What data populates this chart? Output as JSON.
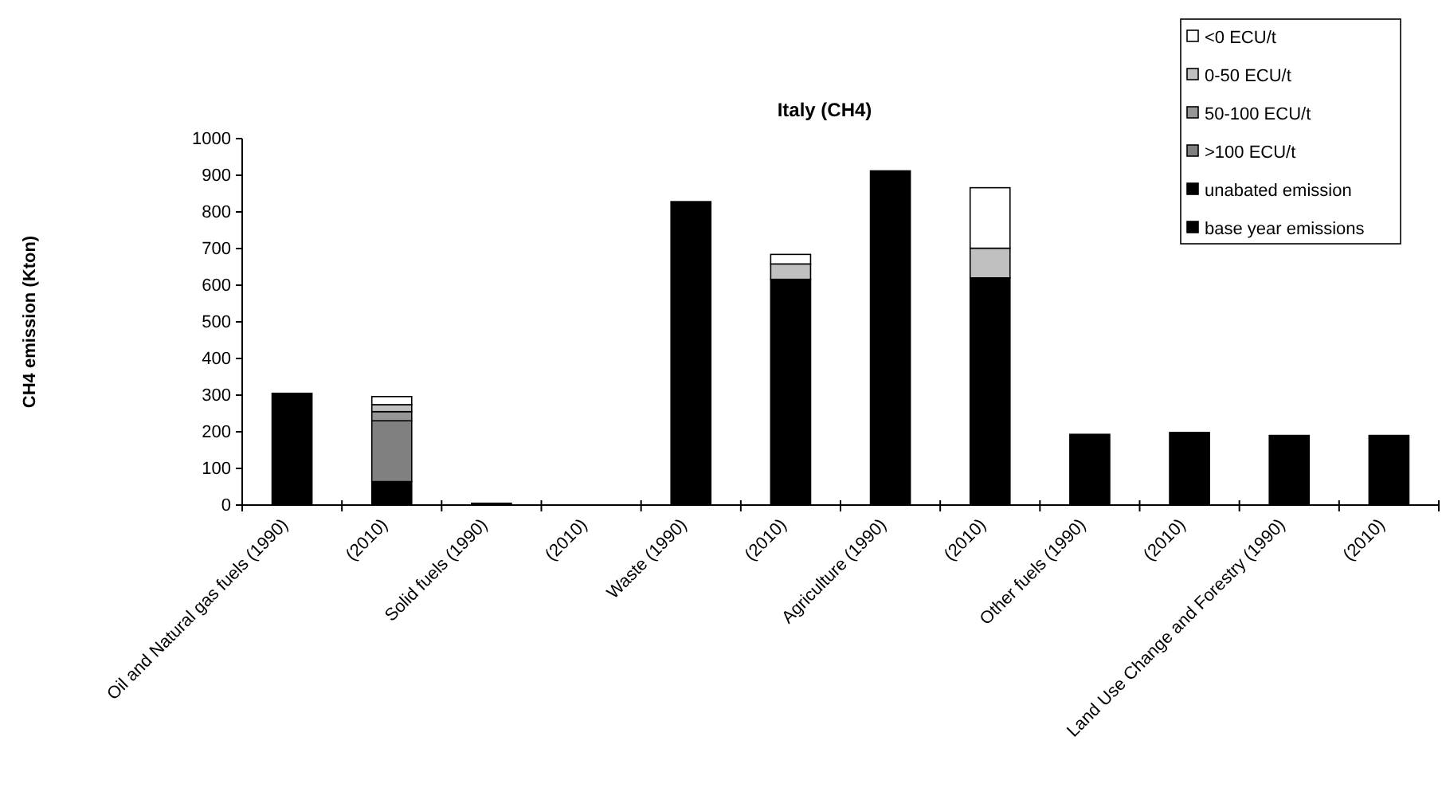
{
  "chart_data": {
    "type": "bar",
    "title": "Italy (CH4)",
    "ylabel": "CH4 emission (Kton)",
    "categories": [
      "Oil and Natural gas fuels (1990)",
      "(2010)",
      "Solid fuels (1990)",
      "(2010)",
      "Waste (1990)",
      "(2010)",
      "Agriculture (1990)",
      "(2010)",
      "Other fuels (1990)",
      "(2010)",
      "Land Use Change and Forestry (1990)",
      "(2010)"
    ],
    "stacked": true,
    "series": [
      {
        "name": "base year emissions",
        "color": "#000000",
        "values": [
          305,
          null,
          5,
          null,
          828,
          null,
          912,
          null,
          193,
          null,
          190,
          null
        ]
      },
      {
        "name": "unabated emission",
        "color": "#000000",
        "values": [
          null,
          64,
          null,
          null,
          null,
          616,
          null,
          620,
          null,
          198,
          null,
          190
        ]
      },
      {
        "name": ">100 ECU/t",
        "color": "#808080",
        "values": [
          null,
          166,
          null,
          null,
          null,
          null,
          null,
          null,
          null,
          null,
          null,
          null
        ]
      },
      {
        "name": "50-100 ECU/t",
        "color": "#969696",
        "values": [
          null,
          25,
          null,
          null,
          null,
          null,
          null,
          null,
          null,
          null,
          null,
          null
        ]
      },
      {
        "name": "0-50 ECU/t",
        "color": "#c0c0c0",
        "values": [
          null,
          19,
          null,
          null,
          null,
          42,
          null,
          81,
          null,
          null,
          null,
          null
        ]
      },
      {
        "name": "<0 ECU/t",
        "color": "#ffffff",
        "values": [
          null,
          22,
          null,
          null,
          null,
          26,
          null,
          165,
          null,
          null,
          null,
          null
        ]
      }
    ],
    "ylim": [
      0,
      1000
    ],
    "yticks": [
      0,
      100,
      200,
      300,
      400,
      500,
      600,
      700,
      800,
      900,
      1000
    ],
    "legend": "top right"
  }
}
